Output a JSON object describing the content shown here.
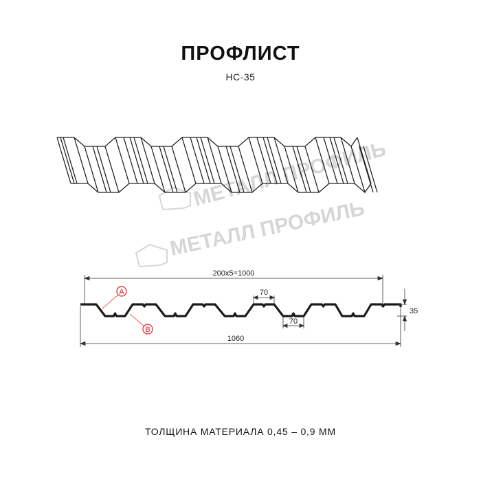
{
  "header": {
    "title": "ПРОФЛИСТ",
    "subtitle": "НС-35"
  },
  "watermark": {
    "text": "МЕТАЛЛ ПРОФИЛЬ"
  },
  "drawing": {
    "dimensions": {
      "pitch_total": "200x5=1000",
      "top_width": "70",
      "bottom_width": "70",
      "height": "35",
      "total_width": "1060"
    },
    "callouts": {
      "a": "A",
      "b": "B"
    },
    "colors": {
      "profile": "#1a1a1a",
      "callout": "#e02020",
      "watermark": "#d6d6d6"
    }
  },
  "footer": {
    "thickness": "ТОЛЩИНА МАТЕРИАЛА 0,45 – 0,9 ММ"
  }
}
